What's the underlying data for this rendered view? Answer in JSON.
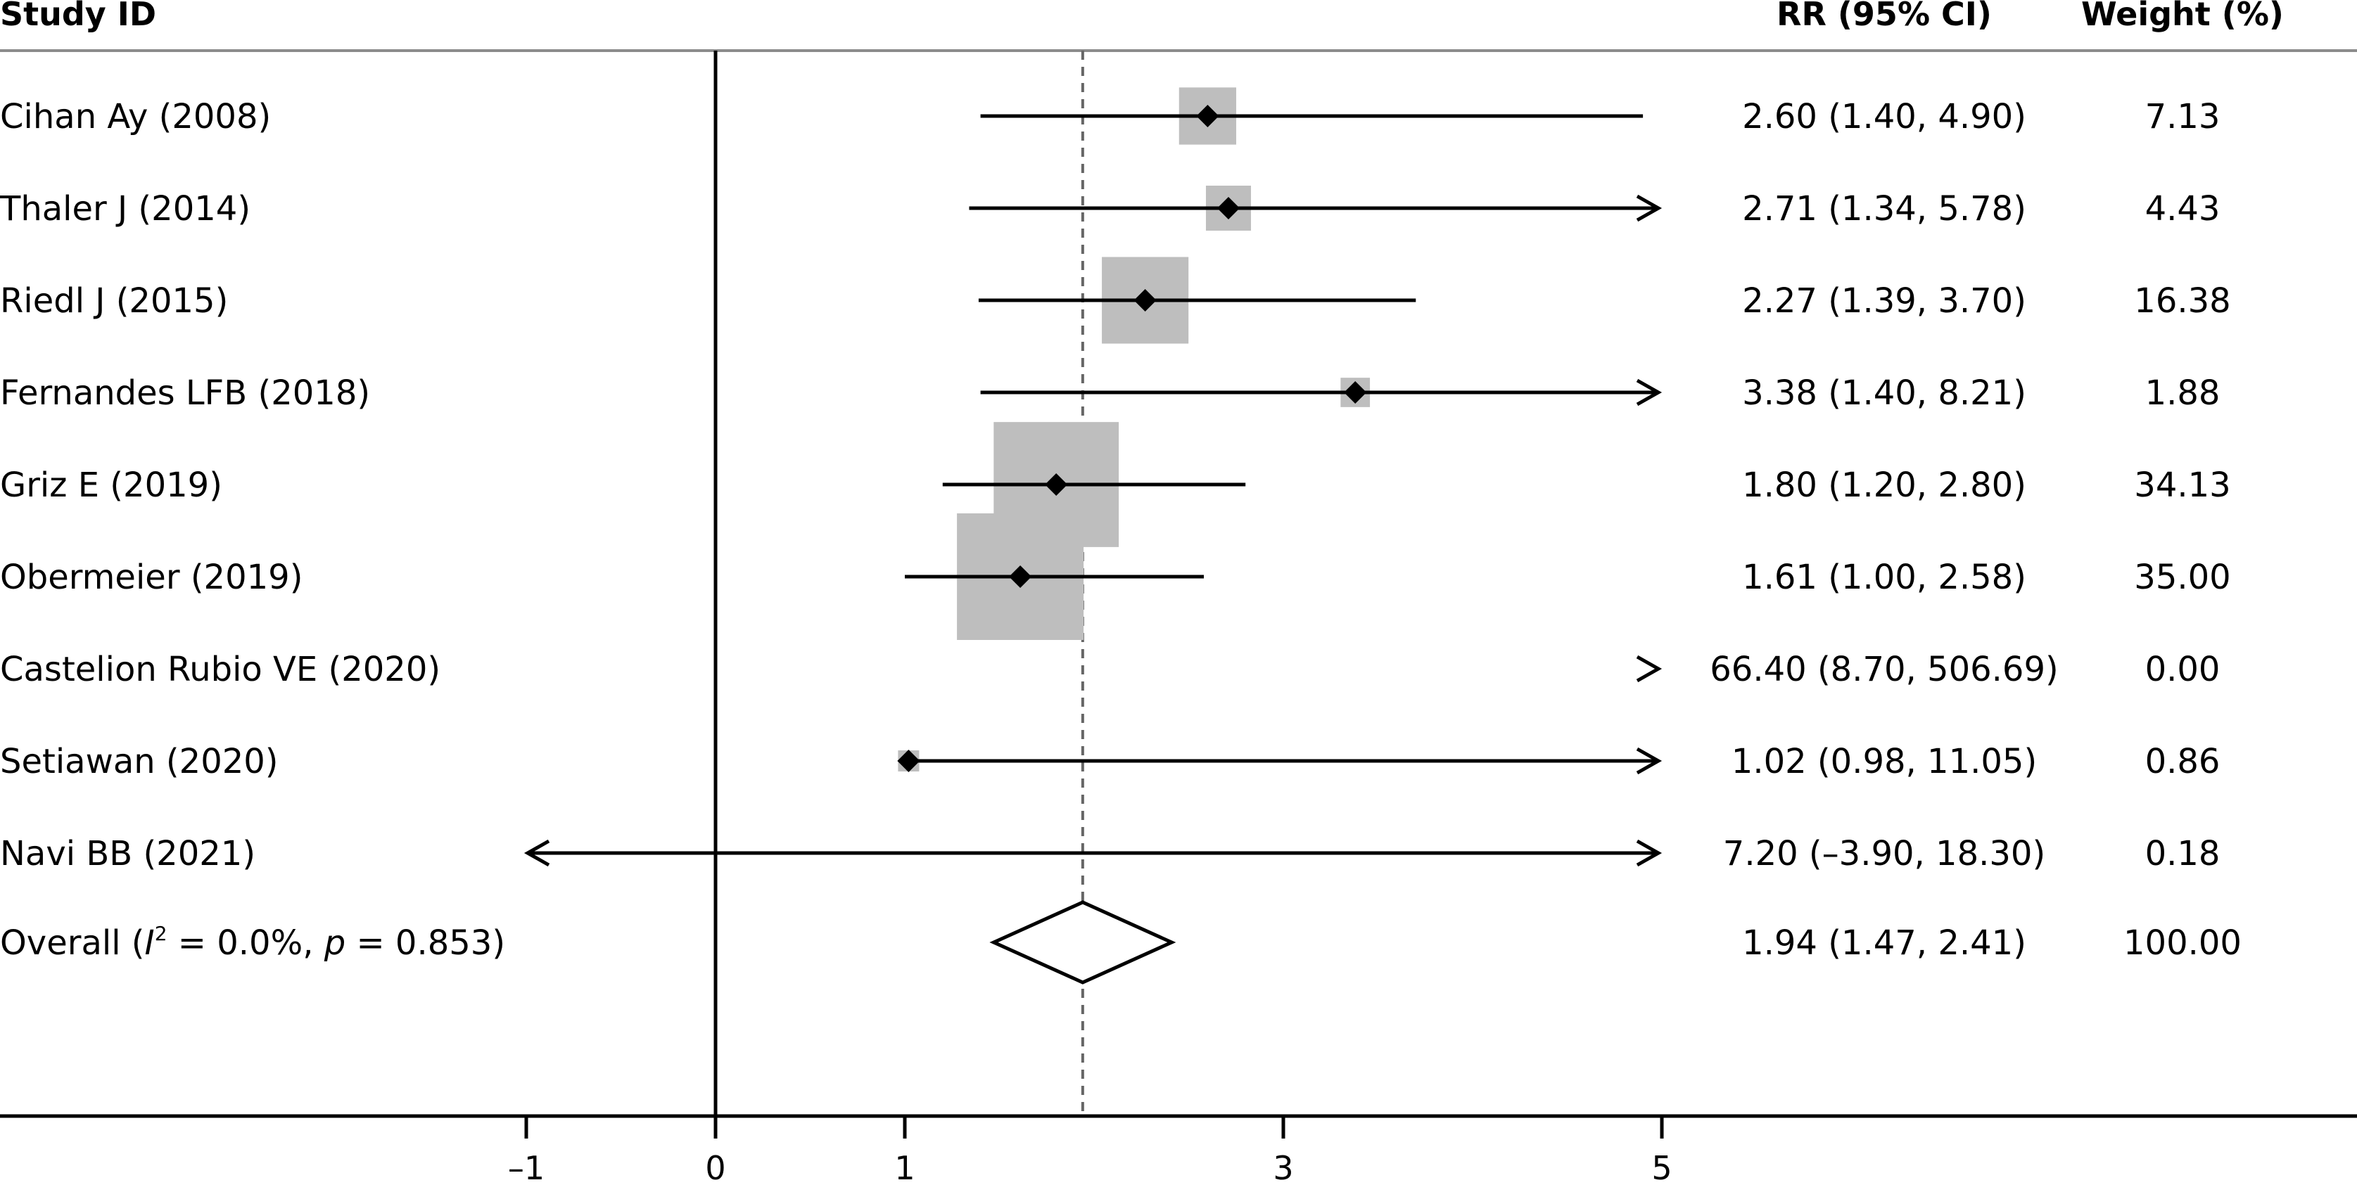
{
  "header": {
    "study_col": "Study ID",
    "rr_col": "RR (95% CI)",
    "weight_col": "Weight (%)"
  },
  "chart_data": {
    "type": "forest",
    "measure": "RR",
    "x_ticks": [
      "–1",
      "0",
      "1",
      "3",
      "5"
    ],
    "x_tick_values": [
      -1,
      0,
      1,
      3,
      5
    ],
    "xlim": [
      -1,
      5
    ],
    "null_line": 0,
    "overall_line": 1.94,
    "studies": [
      {
        "label": "Cihan Ay (2008)",
        "rr": 2.6,
        "lower": 1.4,
        "upper": 4.9,
        "ci_text": "2.60 (1.40, 4.90)",
        "weight": 7.13,
        "weight_text": "7.13"
      },
      {
        "label": "Thaler J (2014)",
        "rr": 2.71,
        "lower": 1.34,
        "upper": 5.78,
        "ci_text": "2.71 (1.34, 5.78)",
        "weight": 4.43,
        "weight_text": "4.43"
      },
      {
        "label": "Riedl J (2015)",
        "rr": 2.27,
        "lower": 1.39,
        "upper": 3.7,
        "ci_text": "2.27 (1.39, 3.70)",
        "weight": 16.38,
        "weight_text": "16.38"
      },
      {
        "label": "Fernandes LFB (2018)",
        "rr": 3.38,
        "lower": 1.4,
        "upper": 8.21,
        "ci_text": "3.38 (1.40, 8.21)",
        "weight": 1.88,
        "weight_text": "1.88"
      },
      {
        "label": "Griz E (2019)",
        "rr": 1.8,
        "lower": 1.2,
        "upper": 2.8,
        "ci_text": "1.80 (1.20, 2.80)",
        "weight": 34.13,
        "weight_text": "34.13"
      },
      {
        "label": "Obermeier (2019)",
        "rr": 1.61,
        "lower": 1.0,
        "upper": 2.58,
        "ci_text": "1.61 (1.00, 2.58)",
        "weight": 35.0,
        "weight_text": "35.00"
      },
      {
        "label": "Castelion Rubio VE (2020)",
        "rr": 66.4,
        "lower": 8.7,
        "upper": 506.69,
        "ci_text": "66.40 (8.70, 506.69)",
        "weight": 0.0,
        "weight_text": "0.00"
      },
      {
        "label": "Setiawan (2020)",
        "rr": 1.02,
        "lower": 0.98,
        "upper": 11.05,
        "ci_text": "1.02 (0.98, 11.05)",
        "weight": 0.86,
        "weight_text": "0.86"
      },
      {
        "label": "Navi BB (2021)",
        "rr": 7.2,
        "lower": -3.9,
        "upper": 18.3,
        "ci_text": "7.20 (–3.90, 18.30)",
        "weight": 0.18,
        "weight_text": "0.18"
      }
    ],
    "overall": {
      "label_prefix": "Overall (",
      "i2_symbol": "I",
      "i2_sup": "2",
      "i2_value": " = 0.0%, ",
      "p_symbol": "p",
      "p_value": " = 0.853)",
      "rr": 1.94,
      "lower": 1.47,
      "upper": 2.41,
      "ci_text": "1.94 (1.47, 2.41)",
      "weight_text": "100.00"
    }
  }
}
